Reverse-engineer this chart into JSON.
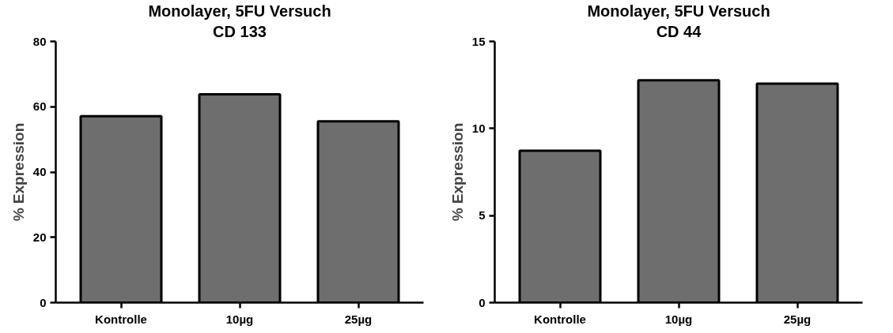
{
  "chart_data": [
    {
      "type": "bar",
      "title": "Monolayer, 5FU Versuch",
      "subtitle": "CD 133",
      "ylabel": "% Expression",
      "categories": [
        "Kontrolle",
        "10µg",
        "25µg"
      ],
      "values": [
        57.1,
        63.8,
        55.5
      ],
      "color": "#6e6e6e",
      "ylim": [
        0,
        80
      ],
      "yticks": [
        0,
        20,
        40,
        60,
        80
      ],
      "grid": false
    },
    {
      "type": "bar",
      "title": "Monolayer, 5FU Versuch",
      "subtitle": "CD 44",
      "ylabel": "% Expression",
      "categories": [
        "Kontrolle",
        "10µg",
        "25µg"
      ],
      "values": [
        8.72,
        12.77,
        12.57
      ],
      "color": "#6e6e6e",
      "ylim": [
        0,
        15
      ],
      "yticks": [
        0,
        5,
        10,
        15
      ],
      "grid": false
    }
  ]
}
